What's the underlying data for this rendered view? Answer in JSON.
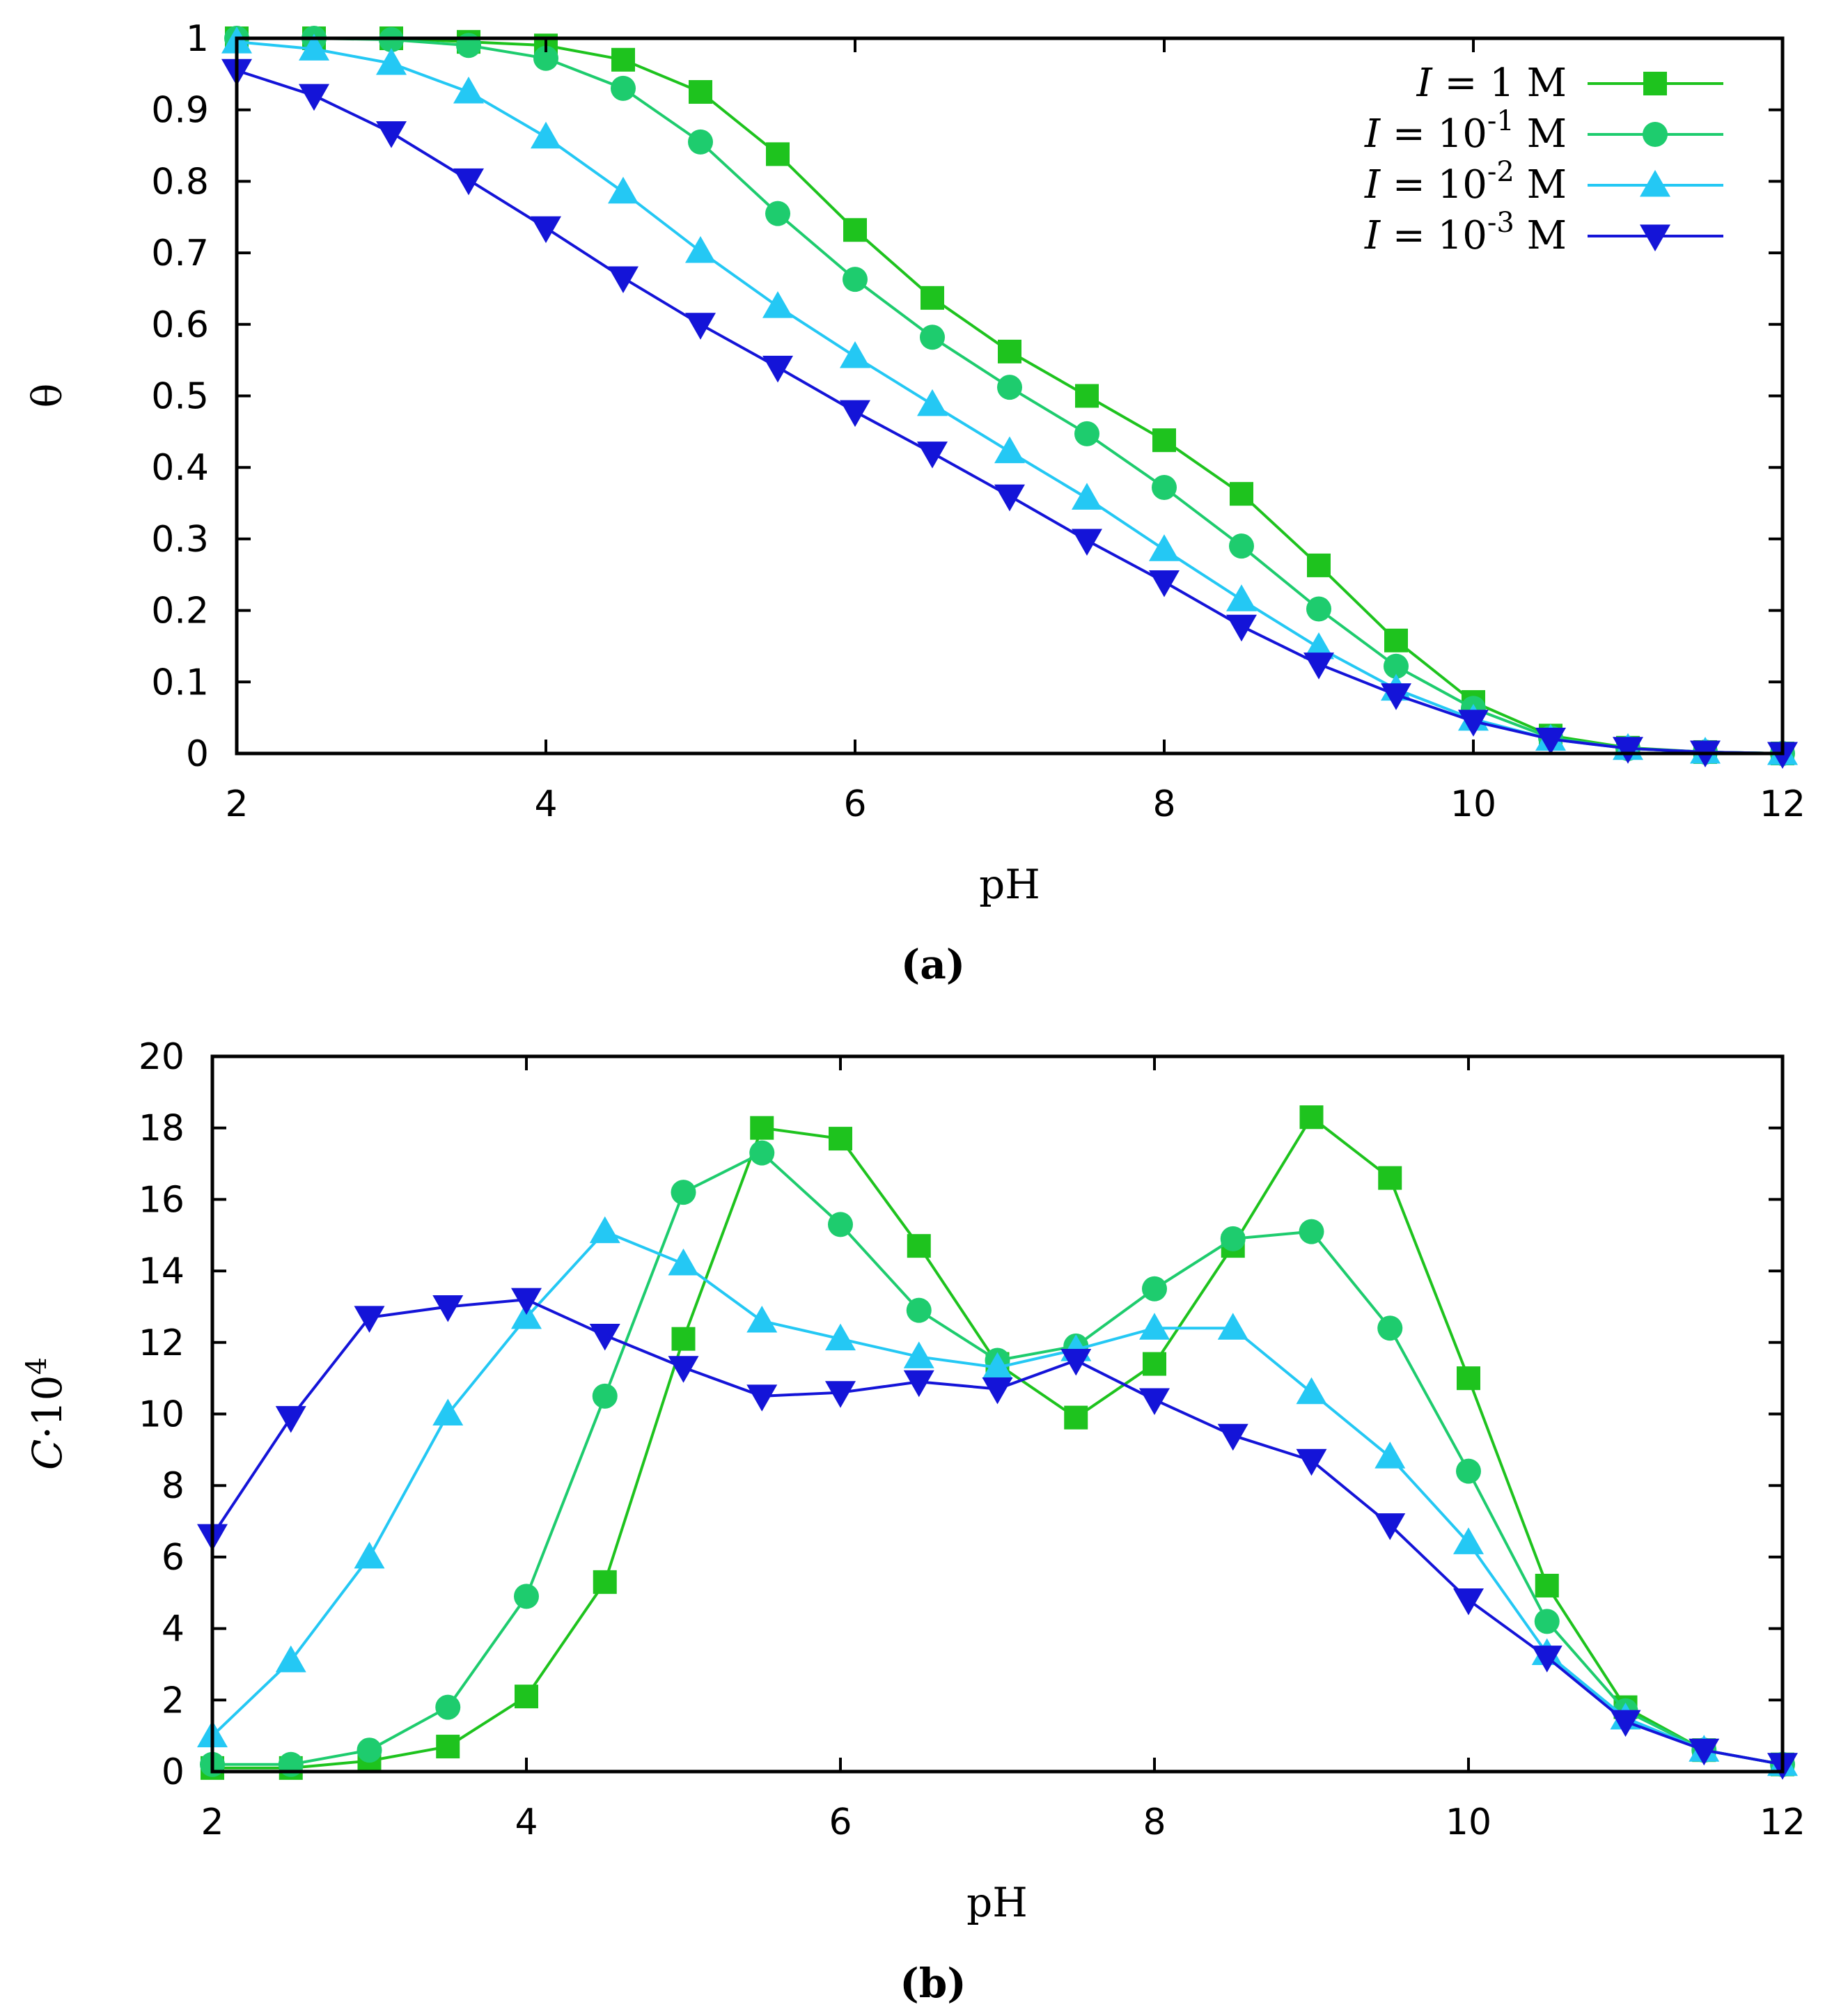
{
  "chart_data": [
    {
      "type": "line",
      "panel": "a",
      "caption": "(a)",
      "xlabel": "pH",
      "ylabel": "θ",
      "xlim": [
        2,
        12
      ],
      "ylim": [
        0,
        1
      ],
      "xticks": [
        "2",
        "4",
        "6",
        "8",
        "10",
        "12"
      ],
      "yticks": [
        "0",
        "0.1",
        "0.2",
        "0.3",
        "0.4",
        "0.5",
        "0.6",
        "0.7",
        "0.8",
        "0.9",
        "1"
      ],
      "grid": false,
      "legend_position": "top-right",
      "x": [
        2,
        2.5,
        3,
        3.5,
        4,
        4.5,
        5,
        5.5,
        6,
        6.5,
        7,
        7.5,
        8,
        8.5,
        9,
        9.5,
        10,
        10.5,
        11,
        11.5,
        12
      ],
      "series": [
        {
          "name": "I = 1 M",
          "legend_lhs": "I",
          "legend_eq": " = ",
          "legend_num": "1",
          "legend_exp": "",
          "legend_unit": " M",
          "color": "#1ec31e",
          "marker": "square",
          "values": [
            1.0,
            1.0,
            1.0,
            0.995,
            0.99,
            0.97,
            0.925,
            0.838,
            0.732,
            0.637,
            0.562,
            0.5,
            0.438,
            0.363,
            0.263,
            0.158,
            0.072,
            0.025,
            0.008,
            0.002,
            0.0
          ]
        },
        {
          "name": "I = 10-1 M",
          "legend_lhs": "I",
          "legend_eq": " = ",
          "legend_num": "10",
          "legend_exp": "-1",
          "legend_unit": " M",
          "color": "#1ecc6e",
          "marker": "circle",
          "values": [
            1.0,
            1.0,
            0.998,
            0.99,
            0.972,
            0.93,
            0.855,
            0.755,
            0.663,
            0.582,
            0.512,
            0.447,
            0.372,
            0.29,
            0.202,
            0.122,
            0.063,
            0.022,
            0.007,
            0.002,
            0.0
          ]
        },
        {
          "name": "I = 10-2 M",
          "legend_lhs": "I",
          "legend_eq": " = ",
          "legend_num": "10",
          "legend_exp": "-2",
          "legend_unit": " M",
          "color": "#24c8f4",
          "marker": "triangle-up",
          "values": [
            0.995,
            0.985,
            0.965,
            0.925,
            0.862,
            0.785,
            0.702,
            0.625,
            0.555,
            0.488,
            0.422,
            0.357,
            0.285,
            0.215,
            0.148,
            0.09,
            0.048,
            0.02,
            0.007,
            0.002,
            0.0
          ]
        },
        {
          "name": "I = 10-3 M",
          "legend_lhs": "I",
          "legend_eq": " = ",
          "legend_num": "10",
          "legend_exp": "-3",
          "legend_unit": " M",
          "color": "#1414d8",
          "marker": "triangle-down",
          "values": [
            0.955,
            0.92,
            0.868,
            0.802,
            0.735,
            0.665,
            0.6,
            0.54,
            0.478,
            0.42,
            0.36,
            0.298,
            0.24,
            0.178,
            0.125,
            0.082,
            0.045,
            0.02,
            0.007,
            0.002,
            0.0
          ]
        }
      ]
    },
    {
      "type": "line",
      "panel": "b",
      "caption": "(b)",
      "xlabel": "pH",
      "ylabel_main": "C",
      "ylabel_suffix": "·10",
      "ylabel_exp": "4",
      "xlim": [
        2,
        12
      ],
      "ylim": [
        0,
        20
      ],
      "xticks": [
        "2",
        "4",
        "6",
        "8",
        "10",
        "12"
      ],
      "yticks": [
        "0",
        "2",
        "4",
        "6",
        "8",
        "10",
        "12",
        "14",
        "16",
        "18",
        "20"
      ],
      "grid": false,
      "legend_position": "none",
      "x": [
        2,
        2.5,
        3,
        3.5,
        4,
        4.5,
        5,
        5.5,
        6,
        6.5,
        7,
        7.5,
        8,
        8.5,
        9,
        9.5,
        10,
        10.5,
        11,
        11.5,
        12
      ],
      "series": [
        {
          "name": "I = 1 M",
          "color": "#1ec31e",
          "marker": "square",
          "values": [
            0.1,
            0.1,
            0.3,
            0.7,
            2.1,
            5.3,
            12.1,
            18.0,
            17.7,
            14.7,
            11.4,
            9.9,
            11.4,
            14.7,
            18.3,
            16.6,
            11.0,
            5.2,
            1.8,
            0.6,
            0.2
          ]
        },
        {
          "name": "I = 10-1 M",
          "color": "#1ecc6e",
          "marker": "circle",
          "values": [
            0.2,
            0.2,
            0.6,
            1.8,
            4.9,
            10.5,
            16.2,
            17.3,
            15.3,
            12.9,
            11.5,
            11.9,
            13.5,
            14.9,
            15.1,
            12.4,
            8.4,
            4.2,
            1.7,
            0.6,
            0.2
          ]
        },
        {
          "name": "I = 10-2 M",
          "color": "#24c8f4",
          "marker": "triangle-up",
          "values": [
            1.0,
            3.1,
            6.0,
            10.0,
            12.7,
            15.1,
            14.2,
            12.6,
            12.1,
            11.6,
            11.3,
            11.8,
            12.4,
            12.4,
            10.6,
            8.8,
            6.4,
            3.3,
            1.5,
            0.6,
            0.2
          ]
        },
        {
          "name": "I = 10-3 M",
          "color": "#1414d8",
          "marker": "triangle-down",
          "values": [
            6.6,
            9.9,
            12.7,
            13.0,
            13.2,
            12.2,
            11.3,
            10.5,
            10.6,
            10.9,
            10.7,
            11.5,
            10.4,
            9.4,
            8.7,
            6.9,
            4.8,
            3.2,
            1.4,
            0.6,
            0.2
          ]
        }
      ]
    }
  ]
}
